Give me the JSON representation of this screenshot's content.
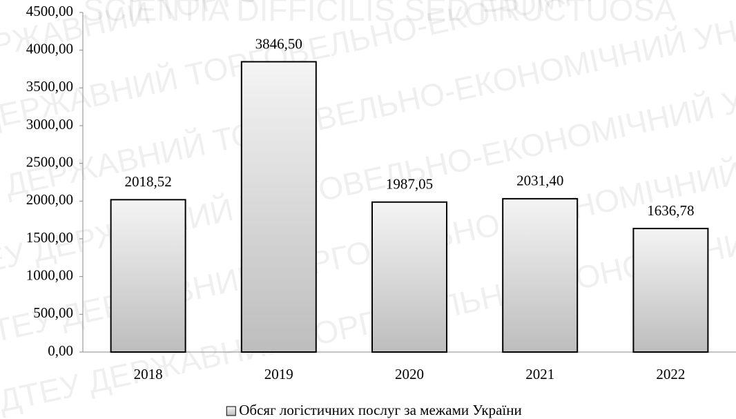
{
  "chart_data": {
    "type": "bar",
    "watermark": [
      "SCIENTIA DIFFICILIS SED FRUCTUOSA",
      "ДТЕУ ДЕРЖАВНИЙ ТОРГОВЕЛЬНО-ЕКОНОМІЧНИЙ УНІВЕРСИТЕТ ДТЕУ"
    ],
    "categories": [
      "2018",
      "2019",
      "2020",
      "2021",
      "2022"
    ],
    "series": [
      {
        "name": "Обсяг логістичних послуг за межами України",
        "color": "#bdbdbd",
        "values": [
          2018.52,
          3846.5,
          1987.05,
          2031.4,
          1636.78
        ],
        "value_labels": [
          "2018,52",
          "3846,50",
          "1987,05",
          "2031,40",
          "1636,78"
        ]
      }
    ],
    "ylim": [
      0,
      4500
    ],
    "yticks": [
      {
        "value": 0,
        "label": "0,00"
      },
      {
        "value": 500,
        "label": "500,00"
      },
      {
        "value": 1000,
        "label": "1000,00"
      },
      {
        "value": 1500,
        "label": "1500,00"
      },
      {
        "value": 2000,
        "label": "2000,00"
      },
      {
        "value": 2500,
        "label": "2500,00"
      },
      {
        "value": 3000,
        "label": "3000,00"
      },
      {
        "value": 3500,
        "label": "3500,00"
      },
      {
        "value": 4000,
        "label": "4000,00"
      },
      {
        "value": 4500,
        "label": "4500,00"
      }
    ],
    "grid": false,
    "legend": "bottom"
  }
}
